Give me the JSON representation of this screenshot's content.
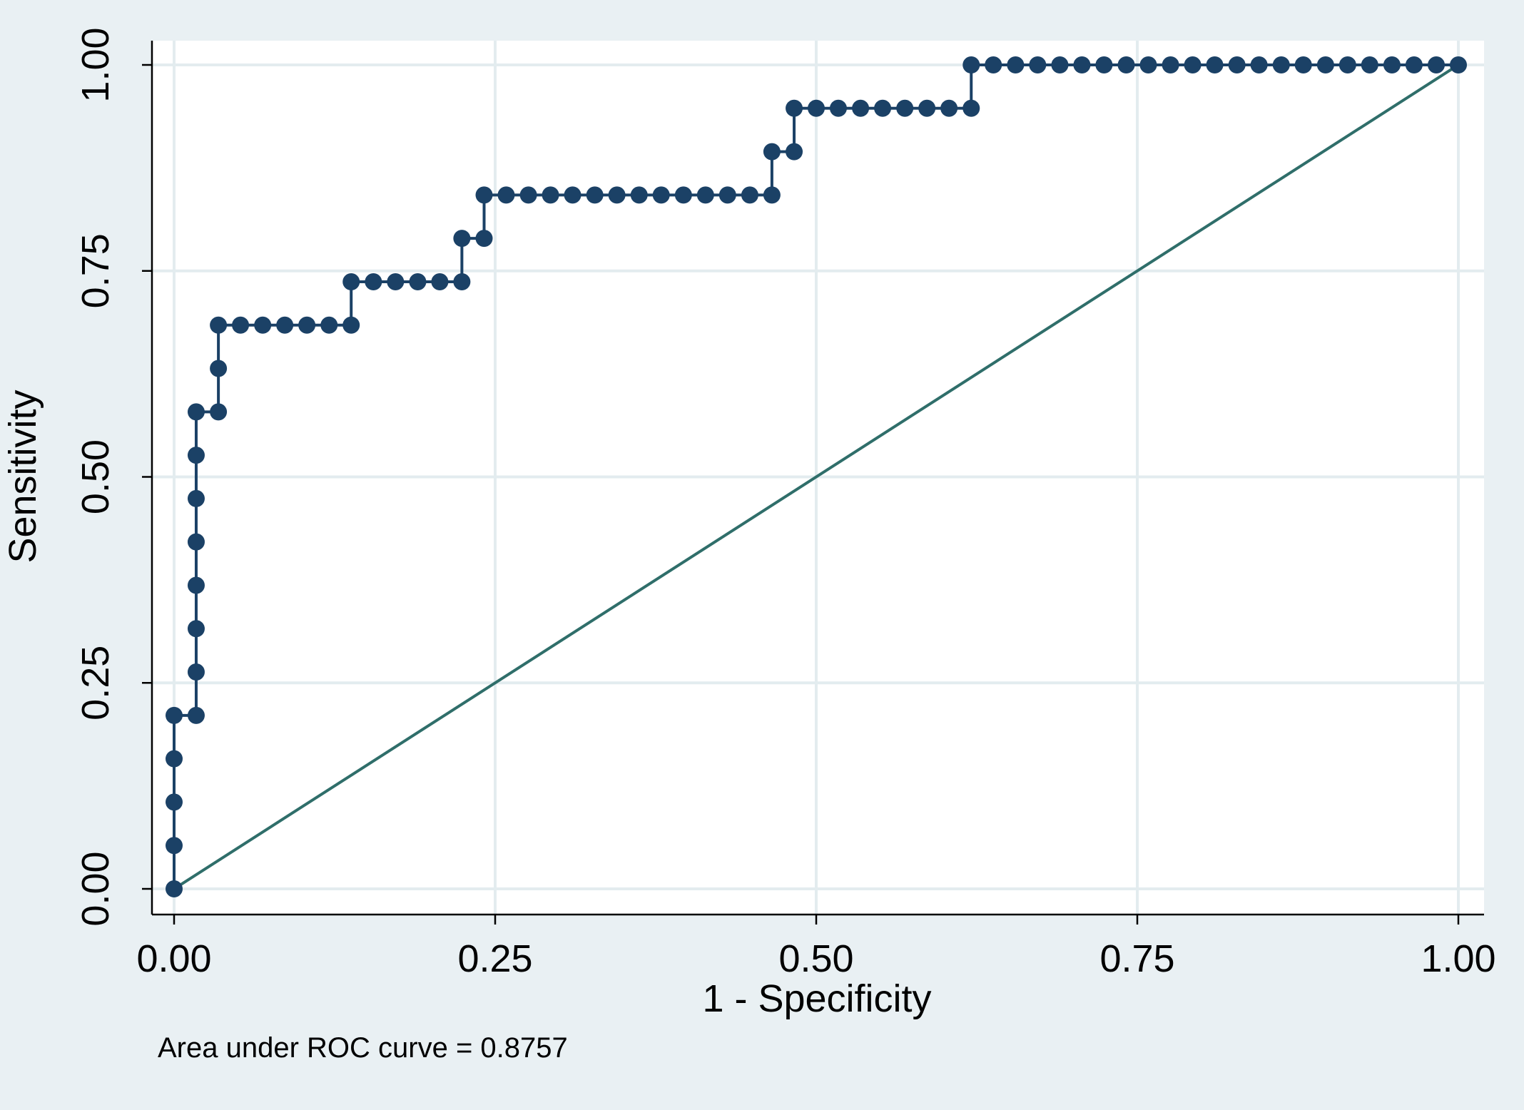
{
  "chart_data": {
    "type": "line",
    "title": "",
    "xlabel": "1 - Specificity",
    "ylabel": "Sensitivity",
    "xlim": [
      0,
      1
    ],
    "ylim": [
      0,
      1
    ],
    "x_ticks": [
      "0.00",
      "0.25",
      "0.50",
      "0.75",
      "1.00"
    ],
    "y_ticks": [
      "0.00",
      "0.25",
      "0.50",
      "0.75",
      "1.00"
    ],
    "grid": true,
    "legend": "none",
    "note": "Area under ROC curve = 0.8757",
    "colors": {
      "background": "#e9f0f3",
      "plot_area": "#ffffff",
      "grid": "#e3ecef",
      "roc_curve": "#1b4166",
      "reference_line": "#2f6e6a"
    },
    "series": [
      {
        "type": "step-line-markers",
        "x": [
          0,
          0,
          0,
          0,
          0,
          0.0172,
          0.0172,
          0.0172,
          0.0172,
          0.0172,
          0.0172,
          0.0172,
          0.0172,
          0.0345,
          0.0345,
          0.0345,
          0.0517,
          0.069,
          0.0862,
          0.1034,
          0.1207,
          0.1379,
          0.1379,
          0.1552,
          0.1724,
          0.1897,
          0.2069,
          0.2241,
          0.2241,
          0.2414,
          0.2414,
          0.2586,
          0.2759,
          0.2931,
          0.3103,
          0.3276,
          0.3448,
          0.3621,
          0.3793,
          0.3966,
          0.4138,
          0.431,
          0.4483,
          0.4655,
          0.4655,
          0.4828,
          0.4828,
          0.5,
          0.5172,
          0.5345,
          0.5517,
          0.569,
          0.5862,
          0.6034,
          0.6207,
          0.6207,
          0.6379,
          0.6552,
          0.6724,
          0.6897,
          0.7069,
          0.7241,
          0.7414,
          0.7586,
          0.7759,
          0.7931,
          0.8103,
          0.8276,
          0.8448,
          0.8621,
          0.8793,
          0.8966,
          0.9138,
          0.931,
          0.9483,
          0.9655,
          0.9828,
          1.0
        ],
        "y": [
          0,
          0.0526,
          0.1053,
          0.1579,
          0.2105,
          0.2105,
          0.2632,
          0.3158,
          0.3684,
          0.4211,
          0.4737,
          0.5263,
          0.5789,
          0.5789,
          0.6316,
          0.6842,
          0.6842,
          0.6842,
          0.6842,
          0.6842,
          0.6842,
          0.6842,
          0.7368,
          0.7368,
          0.7368,
          0.7368,
          0.7368,
          0.7368,
          0.7895,
          0.7895,
          0.8421,
          0.8421,
          0.8421,
          0.8421,
          0.8421,
          0.8421,
          0.8421,
          0.8421,
          0.8421,
          0.8421,
          0.8421,
          0.8421,
          0.8421,
          0.8421,
          0.8947,
          0.8947,
          0.9474,
          0.9474,
          0.9474,
          0.9474,
          0.9474,
          0.9474,
          0.9474,
          0.9474,
          0.9474,
          1.0,
          1.0,
          1.0,
          1.0,
          1.0,
          1.0,
          1.0,
          1.0,
          1.0,
          1.0,
          1.0,
          1.0,
          1.0,
          1.0,
          1.0,
          1.0,
          1.0,
          1.0,
          1.0,
          1.0,
          1.0,
          1.0,
          1.0
        ]
      },
      {
        "type": "reference-line",
        "x": [
          0,
          1
        ],
        "y": [
          0,
          1
        ]
      }
    ]
  }
}
